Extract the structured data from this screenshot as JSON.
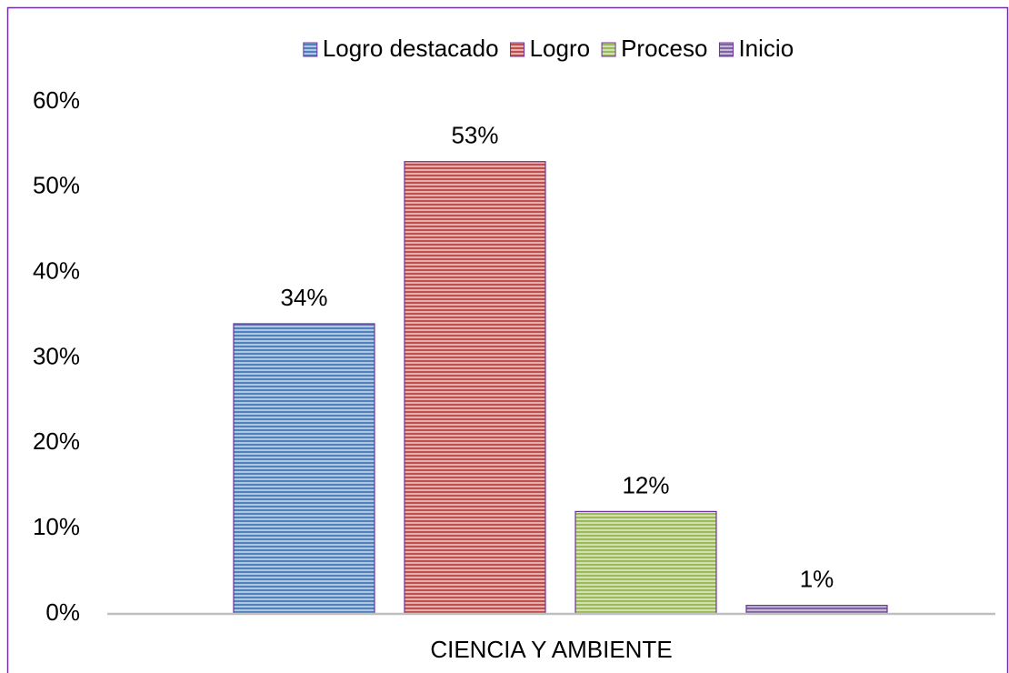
{
  "chart_data": {
    "type": "bar",
    "categories": [
      "CIENCIA Y AMBIENTE"
    ],
    "series": [
      {
        "name": "Logro destacado",
        "color": "#4f81bd",
        "values": [
          34
        ],
        "value_labels": [
          "34%"
        ]
      },
      {
        "name": "Logro",
        "color": "#c0504d",
        "values": [
          53
        ],
        "value_labels": [
          "53%"
        ]
      },
      {
        "name": "Proceso",
        "color": "#9bbb59",
        "values": [
          12
        ],
        "value_labels": [
          "12%"
        ]
      },
      {
        "name": "Inicio",
        "color": "#8064a2",
        "values": [
          1
        ],
        "value_labels": [
          "1%"
        ]
      }
    ],
    "ylim": [
      0,
      60
    ],
    "yticks": [
      {
        "value": 0,
        "label": "0%"
      },
      {
        "value": 10,
        "label": "10%"
      },
      {
        "value": 20,
        "label": "20%"
      },
      {
        "value": 30,
        "label": "30%"
      },
      {
        "value": 40,
        "label": "40%"
      },
      {
        "value": 50,
        "label": "50%"
      },
      {
        "value": 60,
        "label": "60%"
      }
    ],
    "grid": false,
    "legend": "top"
  }
}
